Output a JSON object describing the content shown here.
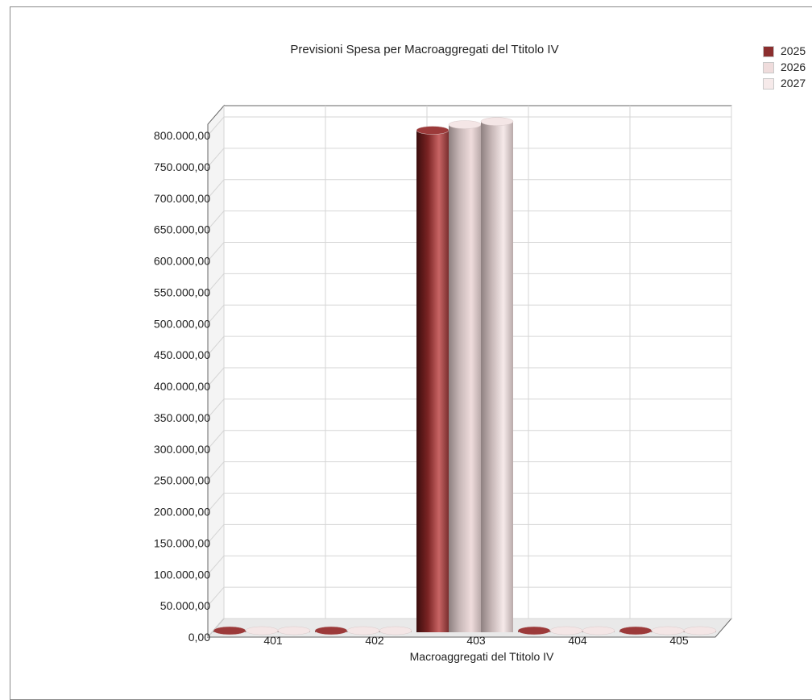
{
  "chart_data": {
    "type": "bar",
    "title": "Previsioni Spesa per Macroaggregati del Ttitolo IV",
    "xlabel": "Macroaggregati del Ttitolo IV",
    "ylabel": "",
    "categories": [
      "401",
      "402",
      "403",
      "404",
      "405"
    ],
    "series": [
      {
        "name": "2025",
        "values": [
          0,
          0,
          816000,
          0,
          0
        ],
        "color": "#8b2e2e"
      },
      {
        "name": "2026",
        "values": [
          0,
          0,
          825000,
          0,
          0
        ],
        "color": "#efdcdc"
      },
      {
        "name": "2027",
        "values": [
          0,
          0,
          830000,
          0,
          0
        ],
        "color": "#f6eaea"
      }
    ],
    "ylim": [
      0,
      800000
    ],
    "yticks": [
      "0,00",
      "50.000,00",
      "100.000,00",
      "150.000,00",
      "200.000,00",
      "250.000,00",
      "300.000,00",
      "350.000,00",
      "400.000,00",
      "450.000,00",
      "500.000,00",
      "550.000,00",
      "600.000,00",
      "650.000,00",
      "700.000,00",
      "750.000,00",
      "800.000,00"
    ],
    "grid": true,
    "legend_position": "top-right"
  }
}
